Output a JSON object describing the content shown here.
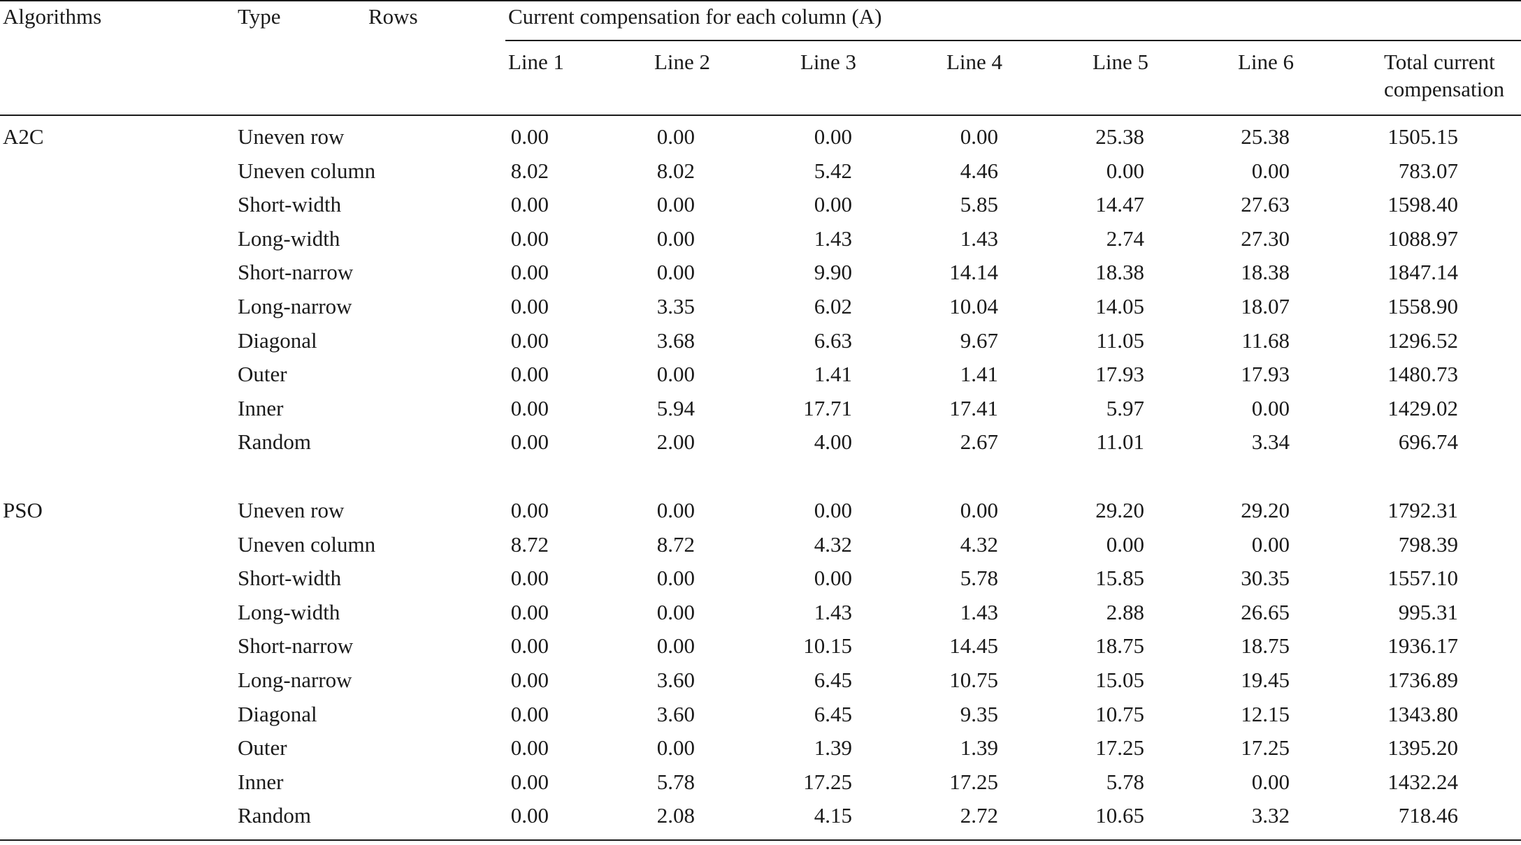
{
  "table": {
    "header": {
      "algorithms": "Algorithms",
      "type": "Type",
      "rows": "Rows",
      "group_title": "Current compensation for each column (A)",
      "lines": [
        "Line 1",
        "Line 2",
        "Line 3",
        "Line 4",
        "Line 5",
        "Line 6"
      ],
      "total_line1": "Total current",
      "total_line2": "compensation"
    },
    "groups": [
      {
        "algorithm": "A2C",
        "rows": [
          {
            "type": "Uneven row",
            "values": [
              "0.00",
              "0.00",
              "0.00",
              "0.00",
              "25.38",
              "25.38"
            ],
            "total": "1505.15"
          },
          {
            "type": "Uneven column",
            "values": [
              "8.02",
              "8.02",
              "5.42",
              "4.46",
              "0.00",
              "0.00"
            ],
            "total": "783.07"
          },
          {
            "type": "Short-width",
            "values": [
              "0.00",
              "0.00",
              "0.00",
              "5.85",
              "14.47",
              "27.63"
            ],
            "total": "1598.40"
          },
          {
            "type": "Long-width",
            "values": [
              "0.00",
              "0.00",
              "1.43",
              "1.43",
              "2.74",
              "27.30"
            ],
            "total": "1088.97"
          },
          {
            "type": "Short-narrow",
            "values": [
              "0.00",
              "0.00",
              "9.90",
              "14.14",
              "18.38",
              "18.38"
            ],
            "total": "1847.14"
          },
          {
            "type": "Long-narrow",
            "values": [
              "0.00",
              "3.35",
              "6.02",
              "10.04",
              "14.05",
              "18.07"
            ],
            "total": "1558.90"
          },
          {
            "type": "Diagonal",
            "values": [
              "0.00",
              "3.68",
              "6.63",
              "9.67",
              "11.05",
              "11.68"
            ],
            "total": "1296.52"
          },
          {
            "type": "Outer",
            "values": [
              "0.00",
              "0.00",
              "1.41",
              "1.41",
              "17.93",
              "17.93"
            ],
            "total": "1480.73"
          },
          {
            "type": "Inner",
            "values": [
              "0.00",
              "5.94",
              "17.71",
              "17.41",
              "5.97",
              "0.00"
            ],
            "total": "1429.02"
          },
          {
            "type": "Random",
            "values": [
              "0.00",
              "2.00",
              "4.00",
              "2.67",
              "11.01",
              "3.34"
            ],
            "total": "696.74"
          }
        ]
      },
      {
        "algorithm": "PSO",
        "rows": [
          {
            "type": "Uneven row",
            "values": [
              "0.00",
              "0.00",
              "0.00",
              "0.00",
              "29.20",
              "29.20"
            ],
            "total": "1792.31"
          },
          {
            "type": "Uneven column",
            "values": [
              "8.72",
              "8.72",
              "4.32",
              "4.32",
              "0.00",
              "0.00"
            ],
            "total": "798.39"
          },
          {
            "type": "Short-width",
            "values": [
              "0.00",
              "0.00",
              "0.00",
              "5.78",
              "15.85",
              "30.35"
            ],
            "total": "1557.10"
          },
          {
            "type": "Long-width",
            "values": [
              "0.00",
              "0.00",
              "1.43",
              "1.43",
              "2.88",
              "26.65"
            ],
            "total": "995.31"
          },
          {
            "type": "Short-narrow",
            "values": [
              "0.00",
              "0.00",
              "10.15",
              "14.45",
              "18.75",
              "18.75"
            ],
            "total": "1936.17"
          },
          {
            "type": "Long-narrow",
            "values": [
              "0.00",
              "3.60",
              "6.45",
              "10.75",
              "15.05",
              "19.45"
            ],
            "total": "1736.89"
          },
          {
            "type": "Diagonal",
            "values": [
              "0.00",
              "3.60",
              "6.45",
              "9.35",
              "10.75",
              "12.15"
            ],
            "total": "1343.80"
          },
          {
            "type": "Outer",
            "values": [
              "0.00",
              "0.00",
              "1.39",
              "1.39",
              "17.25",
              "17.25"
            ],
            "total": "1395.20"
          },
          {
            "type": "Inner",
            "values": [
              "0.00",
              "5.78",
              "17.25",
              "17.25",
              "5.78",
              "0.00"
            ],
            "total": "1432.24"
          },
          {
            "type": "Random",
            "values": [
              "0.00",
              "2.08",
              "4.15",
              "2.72",
              "10.65",
              "3.32"
            ],
            "total": "718.46"
          }
        ]
      }
    ]
  }
}
